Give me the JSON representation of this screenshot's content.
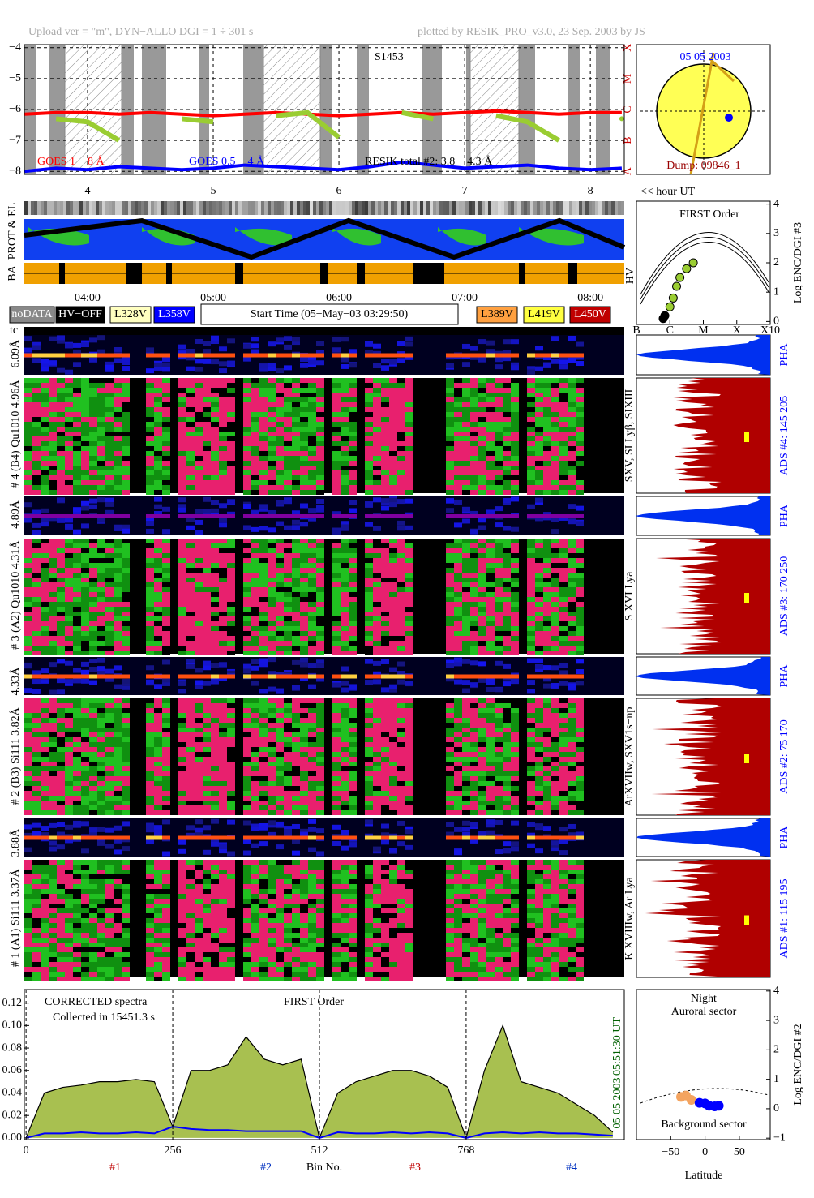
{
  "header": {
    "title_left": "Upload ver = \"m\", DYN−ALLO DGI =  1 ÷ 301 s",
    "title_right": "plotted by RESIK_PRO_v3.0, 23 Sep. 2003 by JS"
  },
  "chart_data": [
    {
      "type": "line",
      "xlim": [
        3.497,
        8.27
      ],
      "xticks": [
        4,
        5,
        6,
        7,
        8
      ],
      "x2label": "<< hour UT",
      "time_ticks": [
        {
          "value": 4,
          "label": "04:00"
        },
        {
          "value": 5,
          "label": "05:00"
        },
        {
          "value": 6,
          "label": "06:00"
        },
        {
          "value": 7,
          "label": "07:00"
        },
        {
          "value": 8,
          "label": "08:00"
        }
      ],
      "ylim": [
        -8.1,
        -3.9
      ],
      "yticks": [
        {
          "value": -4,
          "label": "−4"
        },
        {
          "value": -5,
          "label": "−5"
        },
        {
          "value": -6,
          "label": "−6"
        },
        {
          "value": -7,
          "label": "−7"
        },
        {
          "value": -8,
          "label": "−8"
        }
      ],
      "class_labels": [
        {
          "value": -4,
          "label": "X"
        },
        {
          "value": -5,
          "label": "M"
        },
        {
          "value": -6,
          "label": "C"
        },
        {
          "value": -7,
          "label": "B"
        },
        {
          "value": -8,
          "label": "A"
        }
      ],
      "annotation": "S1453",
      "x": [
        3.5,
        3.75,
        4.0,
        4.25,
        4.5,
        4.75,
        5.0,
        5.25,
        5.5,
        5.75,
        6.0,
        6.25,
        6.5,
        6.75,
        7.0,
        7.25,
        7.5,
        7.75,
        8.0,
        8.25
      ],
      "series": [
        {
          "name": "GOES 1 − 8 Å",
          "color": "#ff0000",
          "values": [
            -6.15,
            -6.1,
            -6.1,
            -6.15,
            -6.1,
            -6.15,
            -6.2,
            -6.15,
            -6.1,
            -6.15,
            -6.2,
            -6.15,
            -6.1,
            -6.15,
            -6.1,
            -6.05,
            -6.1,
            -6.15,
            -6.1,
            -6.1
          ]
        },
        {
          "name": "GOES 0.5 − 4 Å",
          "color": "#0000ff",
          "values": [
            -8.0,
            -7.9,
            -7.95,
            -7.85,
            -7.9,
            -7.95,
            -7.9,
            -7.8,
            -7.85,
            -7.9,
            -7.95,
            -7.85,
            -7.7,
            -7.8,
            -7.9,
            -7.85,
            -7.8,
            -7.9,
            -7.95,
            -7.9
          ]
        },
        {
          "name": "RESIK total #2: 3.8 − 4.3 Å",
          "color": "#9acd32",
          "values": [
            null,
            -6.3,
            -6.4,
            -7.0,
            null,
            -6.3,
            -6.4,
            null,
            -6.2,
            -6.1,
            -6.9,
            null,
            -6.1,
            -6.3,
            null,
            -6.2,
            -6.4,
            -7.0,
            null,
            -6.3
          ]
        }
      ]
    },
    {
      "type": "area",
      "xlim": [
        -3,
        1044
      ],
      "xticks": [
        0,
        256,
        512,
        768
      ],
      "xlabel": "Bin No.",
      "ylim": [
        -0.0015,
        0.132
      ],
      "yticks": [
        {
          "value": 0,
          "label": "0.00"
        },
        {
          "value": 0.02,
          "label": "0.02"
        },
        {
          "value": 0.04,
          "label": "0.04"
        },
        {
          "value": 0.06,
          "label": "0.06"
        },
        {
          "value": 0.08,
          "label": "0.08"
        },
        {
          "value": 0.1,
          "label": "0.10"
        },
        {
          "value": 0.12,
          "label": "0.12"
        }
      ],
      "annotations": [
        "CORRECTED spectra",
        "Collected in 15451.3 s",
        "FIRST Order"
      ],
      "time": "05:51:30 UT",
      "date": "05 05 2003",
      "bin_groups": [
        "#1",
        "#2",
        "#3",
        "#4"
      ],
      "x": [
        0,
        32,
        64,
        96,
        128,
        160,
        192,
        224,
        256,
        288,
        320,
        352,
        384,
        416,
        448,
        480,
        512,
        544,
        576,
        608,
        640,
        672,
        704,
        736,
        768,
        800,
        832,
        864,
        896,
        928,
        960,
        992,
        1024
      ],
      "series": [
        {
          "color": "#a8c050",
          "edge_color": "#000000",
          "values": [
            0.0,
            0.04,
            0.045,
            0.047,
            0.05,
            0.05,
            0.052,
            0.05,
            0.01,
            0.06,
            0.06,
            0.065,
            0.09,
            0.07,
            0.065,
            0.07,
            0.0,
            0.04,
            0.05,
            0.055,
            0.06,
            0.06,
            0.055,
            0.045,
            0.0,
            0.06,
            0.1,
            0.05,
            0.045,
            0.04,
            0.03,
            0.02,
            0.005
          ]
        },
        {
          "color": "#0000ff",
          "values": [
            0.0,
            0.004,
            0.004,
            0.005,
            0.004,
            0.004,
            0.005,
            0.004,
            0.01,
            0.008,
            0.007,
            0.007,
            0.006,
            0.006,
            0.006,
            0.006,
            0.0,
            0.005,
            0.004,
            0.004,
            0.005,
            0.004,
            0.005,
            0.004,
            0.0,
            0.004,
            0.005,
            0.004,
            0.005,
            0.004,
            0.004,
            0.003,
            0.002
          ]
        }
      ]
    },
    {
      "type": "scatter",
      "title": [
        "Night",
        "Auroral sector"
      ],
      "annotation": "Background sector",
      "xlabel": "Latitude",
      "ylabel": "Log ENC/DGI #2",
      "xlim": [
        -100,
        95
      ],
      "xticks": [
        {
          "value": -50,
          "label": "−50"
        },
        0,
        50
      ],
      "ylim": [
        -1.05,
        4.05
      ],
      "yticks": [
        {
          "value": -1,
          "label": "−1"
        },
        0,
        1,
        2,
        3,
        4
      ],
      "series": [
        {
          "color": "#f4a460",
          "x": [
            -35,
            -28,
            -20
          ],
          "values": [
            0.4,
            0.45,
            0.3
          ]
        },
        {
          "color": "#0000ff",
          "x": [
            -8,
            0,
            6,
            14,
            20
          ],
          "values": [
            0.2,
            0.18,
            0.1,
            0.08,
            0.1
          ]
        }
      ]
    },
    {
      "type": "scatter",
      "title": "FIRST Order",
      "ylabel": "Log ENC/DGI #3",
      "xlim": [
        -7,
        -3
      ],
      "xticks": [
        {
          "value": -7,
          "label": "B"
        },
        {
          "value": -6,
          "label": "C"
        },
        {
          "value": -5,
          "label": "M"
        },
        {
          "value": -4,
          "label": "X"
        },
        {
          "value": -3,
          "label": "X10"
        }
      ],
      "ylim": [
        -0.1,
        4.1
      ],
      "yticks": [
        0,
        1,
        2,
        3,
        4
      ],
      "series": [
        {
          "color": "#9acd32",
          "x": [
            -6.0,
            -5.9,
            -5.8,
            -5.7,
            -5.5,
            -5.3
          ],
          "values": [
            0.5,
            0.8,
            1.2,
            1.5,
            1.8,
            2.0
          ]
        },
        {
          "color": "#000000",
          "x": [
            -6.2,
            -6.15
          ],
          "values": [
            0.1,
            0.2
          ]
        }
      ]
    }
  ],
  "sun": {
    "date": "05 05 2003",
    "dump": "Dump: 09846_1"
  },
  "bands": {
    "prot_el": "PROT & EL",
    "ba": "BA",
    "hv": "HV"
  },
  "legend": {
    "nodata": "noDATA",
    "hv_off": "HV−OFF",
    "levels": [
      "L328V",
      "L358V",
      "L389V",
      "L419V",
      "L450V"
    ],
    "start_time": "Start Time (05−May−03 03:29:50)"
  },
  "spectrogram": {
    "tc": "tc",
    "channels": [
      {
        "label": "# 4 (B4) Qu1010 4.96Å − 6.09Å",
        "lines": "SXV, SI Lyβ, SIXIII",
        "ads": "ADS #4:  145 205",
        "pha": "PHA"
      },
      {
        "label": "# 3 (A2) Qu1010 4.31Å − 4.89Å",
        "lines": "S XVI Lya",
        "ads": "ADS #3:  170 250",
        "pha": "PHA"
      },
      {
        "label": "# 2 (B3) Si111 3.82Å − 4.33Å",
        "lines": "ArXVIIw, SXV1s−np",
        "ads": "ADS #2:  75 170",
        "pha": "PHA"
      },
      {
        "label": "# 1 (A1) Si111 3.37Å − 3.88Å",
        "lines": "K XVIIIw, Ar Lya",
        "ads": "ADS #1:  115 195",
        "pha": "PHA"
      }
    ]
  }
}
